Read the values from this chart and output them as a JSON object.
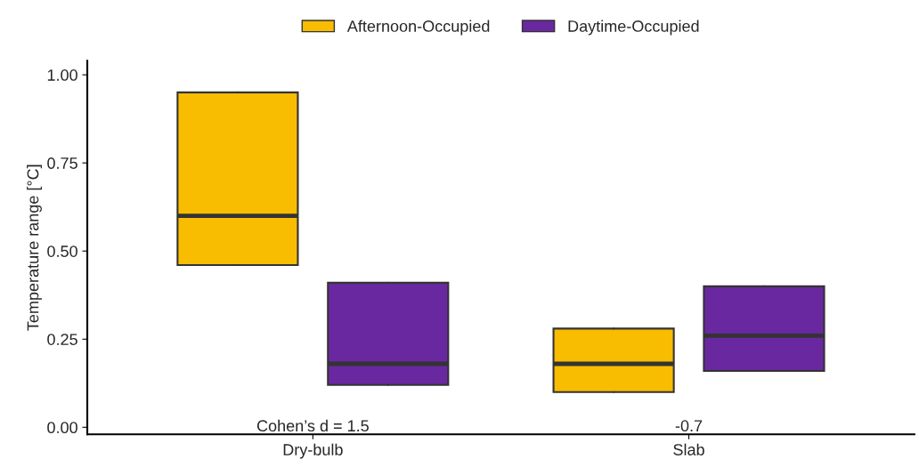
{
  "chart_data": {
    "type": "box",
    "ylabel": "Temperature range [°C]",
    "categories": [
      "Dry-bulb",
      "Slab"
    ],
    "series": [
      {
        "name": "Afternoon-Occupied",
        "color": "#f8bc00",
        "boxes": [
          {
            "low": 0.46,
            "q1": 0.46,
            "median": 0.6,
            "q3": 0.95,
            "high": 0.95
          },
          {
            "low": 0.1,
            "q1": 0.1,
            "median": 0.18,
            "q3": 0.28,
            "high": 0.28
          }
        ]
      },
      {
        "name": "Daytime-Occupied",
        "color": "#6a28a0",
        "boxes": [
          {
            "low": 0.12,
            "q1": 0.12,
            "median": 0.18,
            "q3": 0.41,
            "high": 0.41
          },
          {
            "low": 0.16,
            "q1": 0.16,
            "median": 0.26,
            "q3": 0.4,
            "high": 0.4
          }
        ]
      }
    ],
    "ylim": [
      -0.02,
      1.04
    ],
    "yticks": [
      {
        "value": 0,
        "label": "0.00"
      },
      {
        "value": 0.25,
        "label": "0.25"
      },
      {
        "value": 0.5,
        "label": "0.50"
      },
      {
        "value": 0.75,
        "label": "0.75"
      },
      {
        "value": 1,
        "label": "1.00"
      }
    ],
    "annotations": [
      "Cohen’s d = 1.5",
      "-0.7"
    ],
    "legend": "top",
    "grid": false
  }
}
